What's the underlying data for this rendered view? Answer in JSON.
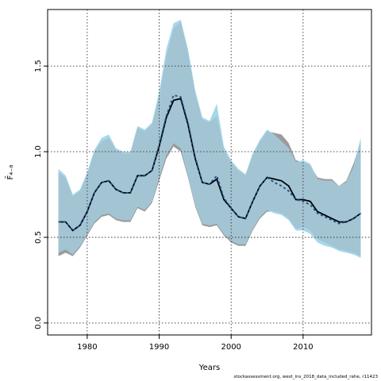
{
  "chart_data": {
    "type": "area",
    "xlabel": "Years",
    "ylabel": "F̄₄₋₈",
    "xlim": [
      1974.5,
      2019.5
    ],
    "ylim": [
      -0.07,
      1.83
    ],
    "xticks": [
      1980,
      1990,
      2000,
      2010
    ],
    "yticks": [
      0.0,
      0.5,
      1.0,
      1.5
    ],
    "ytick_labels": [
      "0.0",
      "0.5",
      "1.0",
      "1.5"
    ],
    "grid": true,
    "colors": {
      "run_a_band": "#9b9b9b",
      "run_b_band": "#a6d8ec",
      "overlap_band": "#a3c4d3",
      "line_a": "#000000",
      "line_b": "#1b4f8a"
    },
    "series": [
      {
        "x": [
          1976,
          1977,
          1978,
          1979,
          1980,
          1981,
          1982,
          1983,
          1984,
          1985,
          1986,
          1987,
          1988,
          1989,
          1990,
          1991,
          1992,
          1993,
          1994,
          1995,
          1996,
          1997,
          1998,
          1999,
          2000,
          2001,
          2002,
          2003,
          2004,
          2005,
          2006,
          2007,
          2008,
          2009,
          2010,
          2011,
          2012,
          2013,
          2014,
          2015,
          2016,
          2017,
          2018
        ],
        "upper": [
          0.88,
          0.85,
          0.74,
          0.77,
          0.87,
          1.0,
          1.06,
          1.08,
          1.01,
          0.99,
          0.99,
          1.14,
          1.12,
          1.16,
          1.32,
          1.56,
          1.72,
          1.76,
          1.58,
          1.34,
          1.19,
          1.17,
          1.21,
          1.01,
          0.94,
          0.89,
          0.86,
          0.98,
          1.06,
          1.12,
          1.11,
          1.1,
          1.05,
          0.95,
          0.94,
          0.92,
          0.85,
          0.84,
          0.84,
          0.8,
          0.83,
          0.93,
          1.06
        ],
        "lower": [
          0.39,
          0.41,
          0.39,
          0.44,
          0.51,
          0.58,
          0.62,
          0.63,
          0.6,
          0.59,
          0.59,
          0.67,
          0.65,
          0.7,
          0.83,
          0.96,
          1.03,
          1.0,
          0.85,
          0.68,
          0.57,
          0.56,
          0.57,
          0.51,
          0.47,
          0.45,
          0.45,
          0.54,
          0.61,
          0.65,
          0.65,
          0.64,
          0.61,
          0.55,
          0.56,
          0.54,
          0.49,
          0.47,
          0.45,
          0.43,
          0.42,
          0.41,
          0.39
        ],
        "mean": [
          0.59,
          0.59,
          0.54,
          0.57,
          0.65,
          0.76,
          0.82,
          0.83,
          0.78,
          0.76,
          0.76,
          0.86,
          0.86,
          0.89,
          1.03,
          1.2,
          1.3,
          1.31,
          1.16,
          0.96,
          0.82,
          0.81,
          0.84,
          0.72,
          0.67,
          0.62,
          0.61,
          0.71,
          0.8,
          0.85,
          0.84,
          0.83,
          0.8,
          0.72,
          0.72,
          0.71,
          0.65,
          0.63,
          0.61,
          0.59,
          0.59,
          0.61,
          0.64
        ]
      },
      {
        "x": [
          1976,
          1977,
          1978,
          1979,
          1980,
          1981,
          1982,
          1983,
          1984,
          1985,
          1986,
          1987,
          1988,
          1989,
          1990,
          1991,
          1992,
          1993,
          1994,
          1995,
          1996,
          1997,
          1998,
          1999,
          2000,
          2001,
          2002,
          2003,
          2004,
          2005,
          2006,
          2007,
          2008,
          2009,
          2010,
          2011,
          2012,
          2013,
          2014,
          2015,
          2016,
          2017,
          2018
        ],
        "upper": [
          0.9,
          0.86,
          0.75,
          0.78,
          0.88,
          1.01,
          1.08,
          1.1,
          1.02,
          1.0,
          1.0,
          1.15,
          1.13,
          1.17,
          1.35,
          1.6,
          1.75,
          1.77,
          1.6,
          1.36,
          1.2,
          1.18,
          1.28,
          1.03,
          0.95,
          0.9,
          0.87,
          0.99,
          1.07,
          1.13,
          1.1,
          1.06,
          1.02,
          0.94,
          0.95,
          0.93,
          0.84,
          0.83,
          0.83,
          0.8,
          0.82,
          0.91,
          1.08
        ],
        "lower": [
          0.41,
          0.43,
          0.4,
          0.45,
          0.52,
          0.59,
          0.63,
          0.64,
          0.61,
          0.6,
          0.6,
          0.68,
          0.66,
          0.71,
          0.85,
          0.98,
          1.05,
          1.02,
          0.86,
          0.69,
          0.58,
          0.57,
          0.58,
          0.52,
          0.48,
          0.46,
          0.46,
          0.55,
          0.62,
          0.66,
          0.64,
          0.63,
          0.6,
          0.54,
          0.54,
          0.52,
          0.47,
          0.45,
          0.44,
          0.42,
          0.41,
          0.4,
          0.38
        ],
        "mean": [
          0.59,
          0.59,
          0.54,
          0.57,
          0.65,
          0.76,
          0.82,
          0.83,
          0.78,
          0.76,
          0.76,
          0.86,
          0.86,
          0.89,
          1.04,
          1.21,
          1.33,
          1.32,
          1.17,
          0.97,
          0.82,
          0.81,
          0.86,
          0.73,
          0.67,
          0.62,
          0.61,
          0.71,
          0.8,
          0.85,
          0.82,
          0.8,
          0.77,
          0.72,
          0.71,
          0.69,
          0.64,
          0.62,
          0.6,
          0.58,
          0.59,
          0.61,
          0.64
        ]
      }
    ]
  },
  "credit": "stockassessment.org, west_ins_2018_data_included_rahe, r11423"
}
